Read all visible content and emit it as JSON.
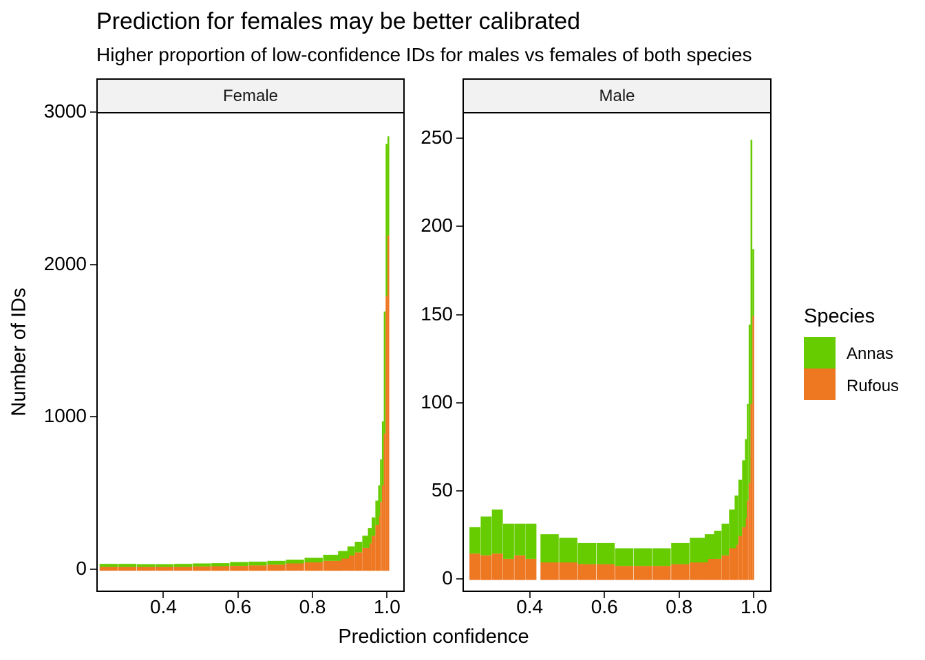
{
  "title": "Prediction for females may be better calibrated",
  "subtitle": "Higher proportion of low-confidence IDs for males vs females of both species",
  "colors": {
    "Annas": "#66cc00",
    "Rufous": "#ee7722"
  },
  "chart_data": [
    {
      "type": "bar",
      "facet": "Female",
      "stacked": true,
      "xlabel": "Prediction confidence",
      "ylabel": "Number of IDs",
      "xlim": [
        0.22,
        1.04
      ],
      "ylim": [
        -130,
        3000
      ],
      "xticks": [
        "0.4",
        "0.6",
        "0.8",
        "1.0"
      ],
      "yticks": [
        "0",
        "1000",
        "2000",
        "3000"
      ],
      "x": [
        0.25,
        0.3,
        0.35,
        0.4,
        0.45,
        0.5,
        0.55,
        0.6,
        0.65,
        0.7,
        0.75,
        0.8,
        0.85,
        0.88,
        0.9,
        0.92,
        0.94,
        0.95,
        0.96,
        0.97,
        0.975,
        0.98,
        0.985,
        0.99,
        0.995,
        1.0
      ],
      "series": [
        {
          "name": "Rufous",
          "values": [
            25,
            25,
            25,
            25,
            25,
            28,
            30,
            32,
            35,
            40,
            48,
            55,
            65,
            80,
            100,
            120,
            150,
            180,
            230,
            300,
            360,
            450,
            560,
            900,
            1800,
            2200
          ]
        },
        {
          "name": "Annas",
          "values": [
            20,
            20,
            18,
            18,
            20,
            20,
            20,
            25,
            25,
            25,
            25,
            30,
            40,
            50,
            60,
            70,
            80,
            100,
            120,
            160,
            200,
            280,
            420,
            800,
            1000,
            650
          ]
        }
      ]
    },
    {
      "type": "bar",
      "facet": "Male",
      "stacked": true,
      "xlabel": "Prediction confidence",
      "ylabel": "Number of IDs",
      "xlim": [
        0.22,
        1.04
      ],
      "ylim": [
        -6,
        250
      ],
      "xticks": [
        "0.4",
        "0.6",
        "0.8",
        "1.0"
      ],
      "yticks": [
        "0",
        "50",
        "100",
        "150",
        "200",
        "250"
      ],
      "x": [
        0.25,
        0.28,
        0.31,
        0.34,
        0.37,
        0.4,
        0.45,
        0.5,
        0.55,
        0.6,
        0.65,
        0.7,
        0.75,
        0.8,
        0.85,
        0.88,
        0.9,
        0.92,
        0.94,
        0.95,
        0.96,
        0.97,
        0.975,
        0.98,
        0.985,
        0.99,
        0.995
      ],
      "series": [
        {
          "name": "Rufous",
          "values": [
            15,
            14,
            15,
            12,
            14,
            12,
            10,
            10,
            9,
            9,
            8,
            8,
            8,
            9,
            10,
            12,
            12,
            14,
            18,
            20,
            25,
            30,
            35,
            45,
            55,
            100,
            150
          ]
        },
        {
          "name": "Annas",
          "values": [
            15,
            22,
            25,
            20,
            18,
            20,
            16,
            14,
            12,
            12,
            10,
            10,
            10,
            12,
            14,
            14,
            16,
            18,
            22,
            28,
            32,
            38,
            45,
            55,
            90,
            150,
            38
          ]
        }
      ]
    }
  ],
  "legend": {
    "title": "Species",
    "items": [
      {
        "label": "Annas",
        "color": "#66cc00"
      },
      {
        "label": "Rufous",
        "color": "#ee7722"
      }
    ]
  }
}
